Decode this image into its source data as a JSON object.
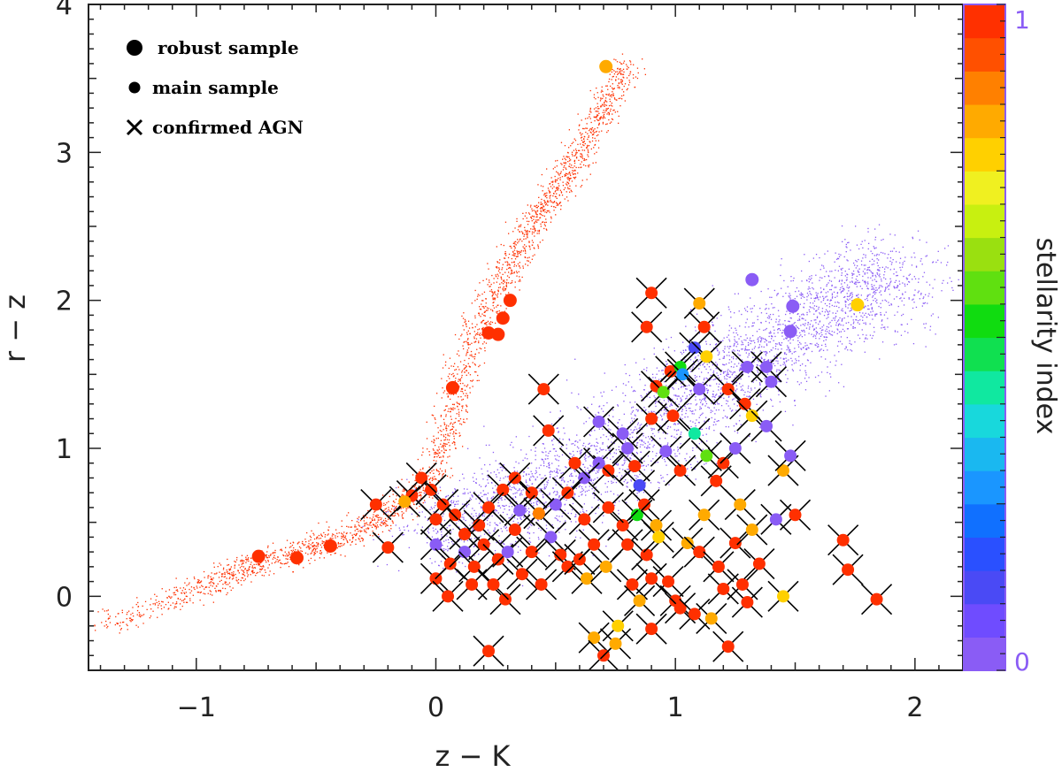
{
  "chart_data": {
    "type": "scatter",
    "title": "",
    "xlabel": "z  −  K",
    "ylabel": "r  −  z",
    "xlim": [
      -1.45,
      2.2
    ],
    "ylim": [
      -0.5,
      4.0
    ],
    "xticks": [
      -1,
      0,
      1,
      2
    ],
    "xtick_labels": [
      "−1",
      "0",
      "1",
      "2"
    ],
    "yticks": [
      0,
      1,
      2,
      3,
      4
    ],
    "ytick_labels": [
      "0",
      "1",
      "2",
      "3",
      "4"
    ],
    "legend": {
      "placement": "top-left",
      "entries": [
        {
          "marker": "large-dot",
          "label": "robust sample"
        },
        {
          "marker": "small-dot",
          "label": "main sample"
        },
        {
          "marker": "cross",
          "label": "confirmed AGN"
        }
      ]
    },
    "colorbar": {
      "title": "stellarity index",
      "min_label": "0",
      "max_label": "1",
      "range": [
        0,
        1
      ],
      "colors": [
        "#8a5cf5",
        "#6f4cff",
        "#4a4af5",
        "#2a50ff",
        "#1070ff",
        "#1a96ff",
        "#1ab8f0",
        "#18d8dc",
        "#10e8a0",
        "#10e050",
        "#10dc10",
        "#60e010",
        "#9ae010",
        "#c8f010",
        "#f0f020",
        "#ffd000",
        "#ffaa00",
        "#ff8000",
        "#ff5000",
        "#ff3000"
      ]
    },
    "background_clouds": [
      {
        "name": "stars",
        "color": "#ff3000",
        "stellarity": 1.0,
        "description_points": [
          [
            -1.4,
            -0.2
          ],
          [
            -1.0,
            0.05
          ],
          [
            -0.8,
            0.2
          ],
          [
            -0.6,
            0.3
          ],
          [
            -0.4,
            0.4
          ],
          [
            -0.2,
            0.55
          ],
          [
            -0.05,
            0.75
          ],
          [
            0.05,
            1.1
          ],
          [
            0.1,
            1.5
          ],
          [
            0.2,
            1.9
          ],
          [
            0.3,
            2.2
          ],
          [
            0.4,
            2.5
          ],
          [
            0.5,
            2.75
          ],
          [
            0.6,
            3.0
          ],
          [
            0.7,
            3.3
          ],
          [
            0.8,
            3.6
          ]
        ]
      },
      {
        "name": "galaxies",
        "color": "#8a5cf5",
        "stellarity": 0.0,
        "description_points": [
          [
            0.0,
            0.45
          ],
          [
            0.3,
            0.6
          ],
          [
            0.5,
            0.8
          ],
          [
            0.8,
            1.0
          ],
          [
            1.0,
            1.3
          ],
          [
            1.2,
            1.5
          ],
          [
            1.4,
            1.7
          ],
          [
            1.6,
            1.9
          ],
          [
            1.8,
            2.1
          ],
          [
            1.9,
            2.2
          ]
        ]
      }
    ],
    "robust_sample": [
      {
        "x": 0.71,
        "y": 3.58,
        "s": 0.86,
        "agn": false
      },
      {
        "x": 0.31,
        "y": 2.0,
        "s": 1.0,
        "agn": false
      },
      {
        "x": 0.28,
        "y": 1.88,
        "s": 1.0,
        "agn": false
      },
      {
        "x": 0.22,
        "y": 1.78,
        "s": 1.0,
        "agn": false
      },
      {
        "x": 0.26,
        "y": 1.77,
        "s": 1.0,
        "agn": false
      },
      {
        "x": 0.07,
        "y": 1.41,
        "s": 1.0,
        "agn": false
      },
      {
        "x": -0.74,
        "y": 0.27,
        "s": 1.0,
        "agn": false
      },
      {
        "x": -0.58,
        "y": 0.26,
        "s": 1.0,
        "agn": false
      },
      {
        "x": -0.44,
        "y": 0.34,
        "s": 1.0,
        "agn": false
      },
      {
        "x": 1.32,
        "y": 2.14,
        "s": 0.0,
        "agn": false
      },
      {
        "x": 1.49,
        "y": 1.96,
        "s": 0.0,
        "agn": false
      },
      {
        "x": 1.48,
        "y": 1.79,
        "s": 0.0,
        "agn": false
      },
      {
        "x": 1.76,
        "y": 1.97,
        "s": 0.78,
        "agn": false
      }
    ],
    "agn_sample": [
      {
        "x": 0.9,
        "y": 2.05,
        "s": 1.0
      },
      {
        "x": 1.1,
        "y": 1.98,
        "s": 0.86
      },
      {
        "x": 0.45,
        "y": 1.4,
        "s": 1.0
      },
      {
        "x": 0.47,
        "y": 1.12,
        "s": 1.0
      },
      {
        "x": 0.68,
        "y": 1.18,
        "s": 0.0
      },
      {
        "x": 0.88,
        "y": 1.82,
        "s": 1.0
      },
      {
        "x": 1.12,
        "y": 1.82,
        "s": 1.0
      },
      {
        "x": 1.08,
        "y": 1.68,
        "s": 0.1
      },
      {
        "x": 0.98,
        "y": 1.52,
        "s": 1.0
      },
      {
        "x": 1.02,
        "y": 1.55,
        "s": 0.55
      },
      {
        "x": 1.13,
        "y": 1.62,
        "s": 0.8
      },
      {
        "x": 1.3,
        "y": 1.55,
        "s": 0.0
      },
      {
        "x": 1.38,
        "y": 1.55,
        "s": 0.0
      },
      {
        "x": 1.4,
        "y": 1.45,
        "s": 0.0
      },
      {
        "x": 0.92,
        "y": 1.42,
        "s": 1.0
      },
      {
        "x": 0.95,
        "y": 1.38,
        "s": 0.6
      },
      {
        "x": 1.03,
        "y": 1.5,
        "s": 0.25
      },
      {
        "x": 1.1,
        "y": 1.4,
        "s": 0.0
      },
      {
        "x": 1.22,
        "y": 1.4,
        "s": 1.0
      },
      {
        "x": 1.29,
        "y": 1.3,
        "s": 1.0
      },
      {
        "x": 1.32,
        "y": 1.22,
        "s": 0.78
      },
      {
        "x": 1.38,
        "y": 1.15,
        "s": 0.0
      },
      {
        "x": 1.08,
        "y": 1.1,
        "s": 0.4
      },
      {
        "x": 1.13,
        "y": 0.95,
        "s": 0.6
      },
      {
        "x": 0.99,
        "y": 1.22,
        "s": 1.0
      },
      {
        "x": 0.9,
        "y": 1.2,
        "s": 1.0
      },
      {
        "x": 0.78,
        "y": 1.1,
        "s": 0.0
      },
      {
        "x": 0.8,
        "y": 1.0,
        "s": 0.0
      },
      {
        "x": 0.83,
        "y": 0.88,
        "s": 1.0
      },
      {
        "x": 0.85,
        "y": 0.75,
        "s": 0.1
      },
      {
        "x": 0.87,
        "y": 0.62,
        "s": 1.0
      },
      {
        "x": 0.84,
        "y": 0.55,
        "s": 0.55
      },
      {
        "x": 0.72,
        "y": 0.85,
        "s": 1.0
      },
      {
        "x": 0.68,
        "y": 0.9,
        "s": 0.0
      },
      {
        "x": 0.62,
        "y": 0.8,
        "s": 0.0
      },
      {
        "x": 0.58,
        "y": 0.9,
        "s": 1.0
      },
      {
        "x": 0.55,
        "y": 0.7,
        "s": 1.0
      },
      {
        "x": 0.5,
        "y": 0.62,
        "s": 0.0
      },
      {
        "x": 0.43,
        "y": 0.56,
        "s": 0.9
      },
      {
        "x": 0.4,
        "y": 0.7,
        "s": 1.0
      },
      {
        "x": 0.33,
        "y": 0.8,
        "s": 1.0
      },
      {
        "x": 0.28,
        "y": 0.72,
        "s": 1.0
      },
      {
        "x": 0.22,
        "y": 0.6,
        "s": 1.0
      },
      {
        "x": 0.18,
        "y": 0.48,
        "s": 1.0
      },
      {
        "x": 0.12,
        "y": 0.42,
        "s": 1.0
      },
      {
        "x": 0.08,
        "y": 0.55,
        "s": 1.0
      },
      {
        "x": 0.03,
        "y": 0.62,
        "s": 1.0
      },
      {
        "x": -0.02,
        "y": 0.72,
        "s": 1.0
      },
      {
        "x": -0.06,
        "y": 0.8,
        "s": 1.0
      },
      {
        "x": -0.1,
        "y": 0.68,
        "s": 1.0
      },
      {
        "x": -0.2,
        "y": 0.33,
        "s": 1.0
      },
      {
        "x": -0.25,
        "y": 0.62,
        "s": 1.0
      },
      {
        "x": -0.13,
        "y": 0.64,
        "s": 0.86
      },
      {
        "x": 0.0,
        "y": 0.52,
        "s": 1.0
      },
      {
        "x": 0.0,
        "y": 0.35,
        "s": 0.0
      },
      {
        "x": 0.0,
        "y": 0.12,
        "s": 1.0
      },
      {
        "x": 0.06,
        "y": 0.22,
        "s": 1.0
      },
      {
        "x": 0.12,
        "y": 0.3,
        "s": 0.0
      },
      {
        "x": 0.16,
        "y": 0.2,
        "s": 1.0
      },
      {
        "x": 0.2,
        "y": 0.35,
        "s": 1.0
      },
      {
        "x": 0.26,
        "y": 0.25,
        "s": 1.0
      },
      {
        "x": 0.3,
        "y": 0.3,
        "s": 0.0
      },
      {
        "x": 0.33,
        "y": 0.45,
        "s": 1.0
      },
      {
        "x": 0.36,
        "y": 0.15,
        "s": 1.0
      },
      {
        "x": 0.22,
        "y": -0.37,
        "s": 1.0
      },
      {
        "x": 0.29,
        "y": -0.02,
        "s": 1.0
      },
      {
        "x": 0.44,
        "y": 0.08,
        "s": 1.0
      },
      {
        "x": 0.4,
        "y": 0.3,
        "s": 1.0
      },
      {
        "x": 0.48,
        "y": 0.4,
        "s": 0.0
      },
      {
        "x": 0.52,
        "y": 0.28,
        "s": 1.0
      },
      {
        "x": 0.55,
        "y": 0.2,
        "s": 1.0
      },
      {
        "x": 0.6,
        "y": 0.25,
        "s": 1.0
      },
      {
        "x": 0.63,
        "y": 0.12,
        "s": 0.86
      },
      {
        "x": 0.66,
        "y": 0.35,
        "s": 1.0
      },
      {
        "x": 0.66,
        "y": -0.28,
        "s": 0.86
      },
      {
        "x": 0.7,
        "y": -0.4,
        "s": 1.0
      },
      {
        "x": 0.75,
        "y": -0.32,
        "s": 0.86
      },
      {
        "x": 0.76,
        "y": -0.2,
        "s": 0.78
      },
      {
        "x": 0.71,
        "y": 0.2,
        "s": 0.86
      },
      {
        "x": 0.78,
        "y": 0.48,
        "s": 1.0
      },
      {
        "x": 0.8,
        "y": 0.35,
        "s": 1.0
      },
      {
        "x": 0.82,
        "y": 0.08,
        "s": 1.0
      },
      {
        "x": 0.85,
        "y": -0.03,
        "s": 0.86
      },
      {
        "x": 0.88,
        "y": 0.28,
        "s": 1.0
      },
      {
        "x": 0.9,
        "y": 0.12,
        "s": 1.0
      },
      {
        "x": 0.92,
        "y": 0.48,
        "s": 0.86
      },
      {
        "x": 0.93,
        "y": 0.4,
        "s": 0.78
      },
      {
        "x": 0.97,
        "y": 0.1,
        "s": 1.0
      },
      {
        "x": 0.9,
        "y": -0.22,
        "s": 1.0
      },
      {
        "x": 1.0,
        "y": -0.03,
        "s": 1.0
      },
      {
        "x": 1.02,
        "y": -0.08,
        "s": 1.0
      },
      {
        "x": 1.05,
        "y": 0.36,
        "s": 0.86
      },
      {
        "x": 1.08,
        "y": -0.12,
        "s": 1.0
      },
      {
        "x": 1.1,
        "y": 0.3,
        "s": 1.0
      },
      {
        "x": 1.12,
        "y": 0.55,
        "s": 0.86
      },
      {
        "x": 1.15,
        "y": -0.15,
        "s": 0.86
      },
      {
        "x": 1.18,
        "y": 0.2,
        "s": 1.0
      },
      {
        "x": 1.2,
        "y": 0.05,
        "s": 1.0
      },
      {
        "x": 1.22,
        "y": -0.34,
        "s": 1.0
      },
      {
        "x": 1.25,
        "y": 0.36,
        "s": 1.0
      },
      {
        "x": 1.27,
        "y": 0.62,
        "s": 0.86
      },
      {
        "x": 1.28,
        "y": 0.08,
        "s": 1.0
      },
      {
        "x": 1.3,
        "y": -0.04,
        "s": 1.0
      },
      {
        "x": 1.32,
        "y": 0.45,
        "s": 0.86
      },
      {
        "x": 1.35,
        "y": 0.22,
        "s": 1.0
      },
      {
        "x": 1.42,
        "y": 0.52,
        "s": 0.0
      },
      {
        "x": 1.45,
        "y": 0.0,
        "s": 0.78
      },
      {
        "x": 1.45,
        "y": 0.85,
        "s": 0.86
      },
      {
        "x": 1.48,
        "y": 0.95,
        "s": 0.0
      },
      {
        "x": 1.5,
        "y": 0.55,
        "s": 1.0
      },
      {
        "x": 1.7,
        "y": 0.38,
        "s": 1.0
      },
      {
        "x": 1.72,
        "y": 0.18,
        "s": 1.0
      },
      {
        "x": 1.84,
        "y": -0.02,
        "s": 1.0
      },
      {
        "x": 1.17,
        "y": 0.78,
        "s": 1.0
      },
      {
        "x": 1.2,
        "y": 0.9,
        "s": 1.0
      },
      {
        "x": 1.25,
        "y": 1.0,
        "s": 0.0
      },
      {
        "x": 1.02,
        "y": 0.85,
        "s": 1.0
      },
      {
        "x": 0.96,
        "y": 0.98,
        "s": 0.0
      },
      {
        "x": 0.72,
        "y": 0.6,
        "s": 1.0
      },
      {
        "x": 0.62,
        "y": 0.52,
        "s": 1.0
      },
      {
        "x": 0.35,
        "y": 0.58,
        "s": 0.0
      },
      {
        "x": 0.15,
        "y": 0.08,
        "s": 1.0
      },
      {
        "x": 0.05,
        "y": 0.0,
        "s": 1.0
      },
      {
        "x": 0.24,
        "y": 0.08,
        "s": 1.0
      }
    ]
  }
}
